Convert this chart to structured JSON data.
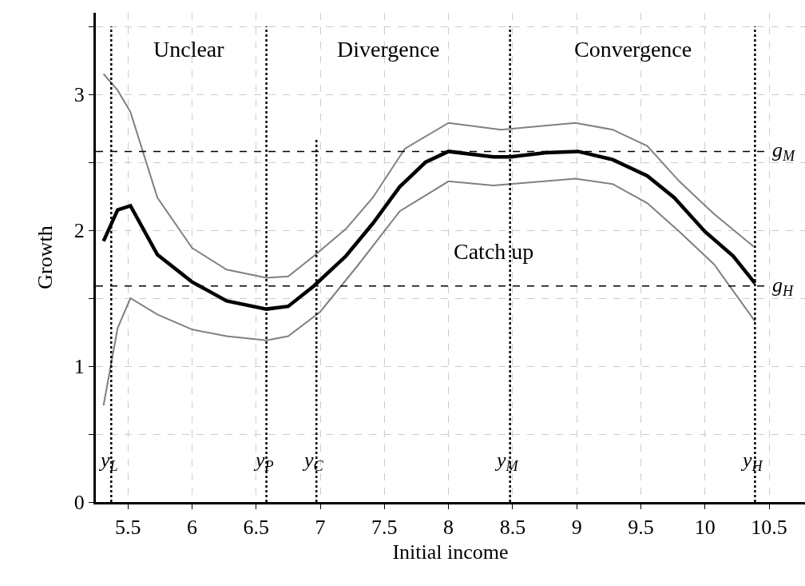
{
  "chart_data": {
    "type": "line",
    "xlabel": "Initial income",
    "ylabel": "Growth",
    "xlim": [
      5.25,
      10.78
    ],
    "xticks": [
      5.5,
      6,
      6.5,
      7,
      7.5,
      8,
      8.5,
      9,
      9.5,
      10,
      10.5
    ],
    "ylim": [
      0,
      3.6
    ],
    "yticks": [
      0,
      {
        "value": 0.5,
        "label": null
      },
      1,
      {
        "value": 1.5,
        "label": null
      },
      2,
      {
        "value": 2.5,
        "label": null
      },
      3,
      {
        "value": 3.5,
        "label": null
      }
    ],
    "grid": true,
    "marker": "none",
    "series": [
      {
        "color": "#808080",
        "x": [
          5.31,
          5.42,
          5.52,
          5.73,
          6.0,
          6.27,
          6.58,
          6.75,
          6.95,
          7.2,
          7.41,
          7.66,
          8.0,
          8.41,
          8.99,
          9.28,
          9.55,
          9.8,
          10.07,
          10.38
        ],
        "values": [
          3.15,
          3.03,
          2.87,
          2.24,
          1.87,
          1.71,
          1.65,
          1.66,
          1.81,
          2.01,
          2.24,
          2.6,
          2.79,
          2.74,
          2.79,
          2.74,
          2.62,
          2.36,
          2.12,
          1.88
        ]
      },
      {
        "color": "#808080",
        "x": [
          5.31,
          5.42,
          5.52,
          5.73,
          6.0,
          6.27,
          6.58,
          6.75,
          7.0,
          7.3,
          7.62,
          8.0,
          8.35,
          8.99,
          9.28,
          9.55,
          9.8,
          10.07,
          10.39
        ],
        "values": [
          0.71,
          1.28,
          1.5,
          1.38,
          1.27,
          1.22,
          1.19,
          1.22,
          1.4,
          1.75,
          2.14,
          2.36,
          2.33,
          2.38,
          2.34,
          2.2,
          1.99,
          1.75,
          1.33
        ]
      },
      {
        "color": "#000000",
        "x": [
          5.31,
          5.42,
          5.52,
          5.73,
          6.0,
          6.27,
          6.58,
          6.75,
          6.95,
          7.2,
          7.41,
          7.62,
          7.82,
          8.0,
          8.35,
          8.48,
          8.76,
          9.01,
          9.28,
          9.55,
          9.76,
          10.0,
          10.22,
          10.39
        ],
        "values": [
          1.92,
          2.15,
          2.18,
          1.82,
          1.62,
          1.48,
          1.42,
          1.44,
          1.59,
          1.81,
          2.05,
          2.32,
          2.5,
          2.58,
          2.54,
          2.54,
          2.57,
          2.58,
          2.52,
          2.4,
          2.24,
          1.99,
          1.81,
          1.61
        ]
      }
    ],
    "ref_lines": [
      {
        "axis": "x",
        "value": 5.37,
        "label": "y$_{L}$",
        "line_style": "dotted",
        "color": "#000000"
      },
      {
        "axis": "x",
        "value": 6.58,
        "label": "y$_{P}$",
        "line_style": "dotted",
        "color": "#000000"
      },
      {
        "axis": "x",
        "value": 6.97,
        "label": "y$_{C}$",
        "line_style": "dotted",
        "color": "#000000"
      },
      {
        "axis": "x",
        "value": 8.48,
        "label": "y$_{M}$",
        "line_style": "dotted",
        "color": "#000000"
      },
      {
        "axis": "x",
        "value": 10.39,
        "label": "y$_{H}$",
        "line_style": "dotted",
        "color": "#000000"
      },
      {
        "axis": "y",
        "value": 2.58,
        "label": "g$_{M}$",
        "line_style": "dashed",
        "color": "#000000"
      },
      {
        "axis": "y",
        "value": 1.59,
        "label": "g$_{H}$",
        "line_style": "dashed",
        "color": "#000000"
      }
    ],
    "annotations": [
      "Unclear",
      "Divergence",
      "Convergence",
      "Catch up"
    ]
  }
}
